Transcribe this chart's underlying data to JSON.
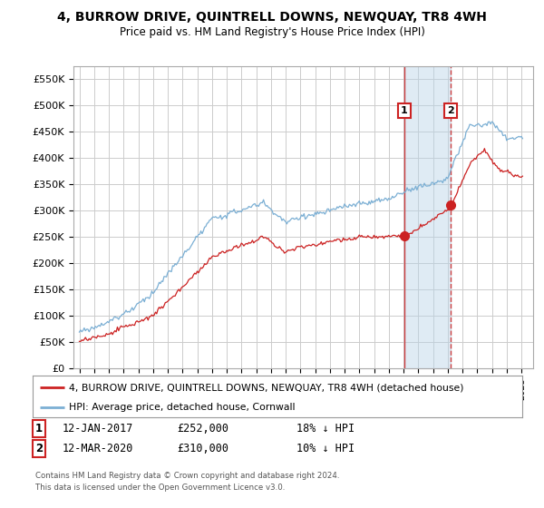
{
  "title": "4, BURROW DRIVE, QUINTRELL DOWNS, NEWQUAY, TR8 4WH",
  "subtitle": "Price paid vs. HM Land Registry's House Price Index (HPI)",
  "ylim": [
    0,
    575000
  ],
  "yticks": [
    0,
    50000,
    100000,
    150000,
    200000,
    250000,
    300000,
    350000,
    400000,
    450000,
    500000,
    550000
  ],
  "ytick_labels": [
    "£0",
    "£50K",
    "£100K",
    "£150K",
    "£200K",
    "£250K",
    "£300K",
    "£350K",
    "£400K",
    "£450K",
    "£500K",
    "£550K"
  ],
  "hpi_color": "#7bafd4",
  "price_color": "#cc2222",
  "marker1_x": 2017.04,
  "marker2_x": 2020.21,
  "marker1_price": 252000,
  "marker2_price": 310000,
  "legend_entry1": "4, BURROW DRIVE, QUINTRELL DOWNS, NEWQUAY, TR8 4WH (detached house)",
  "legend_entry2": "HPI: Average price, detached house, Cornwall",
  "table_row1": [
    "1",
    "12-JAN-2017",
    "£252,000",
    "18% ↓ HPI"
  ],
  "table_row2": [
    "2",
    "12-MAR-2020",
    "£310,000",
    "10% ↓ HPI"
  ],
  "footnote1": "Contains HM Land Registry data © Crown copyright and database right 2024.",
  "footnote2": "This data is licensed under the Open Government Licence v3.0.",
  "background_color": "#ffffff",
  "grid_color": "#cccccc",
  "xlim_left": 1994.6,
  "xlim_right": 2025.8
}
